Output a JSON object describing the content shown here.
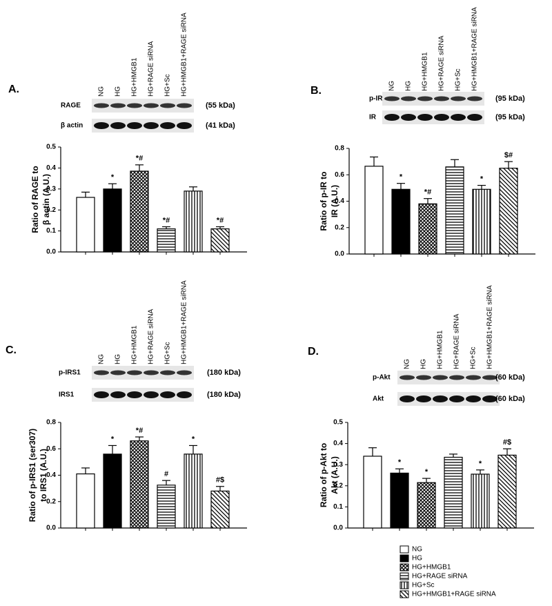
{
  "chart_data": [
    {
      "type": "bar",
      "panel": "A.",
      "categories": [
        "NG",
        "HG",
        "HG+HMGB1",
        "HG+RAGE siRNA",
        "HG+Sc",
        "HG+HMGB1+RAGE siRNA"
      ],
      "blots": [
        {
          "label": "RAGE",
          "size": "(55 kDa)"
        },
        {
          "label": "β actin",
          "size": "(41 kDa)"
        }
      ],
      "ylabel": [
        "Ratio of RAGE to",
        "β actin  (A.U.)"
      ],
      "values": [
        0.26,
        0.3,
        0.385,
        0.11,
        0.29,
        0.11
      ],
      "errors": [
        0.025,
        0.025,
        0.03,
        0.01,
        0.02,
        0.01
      ],
      "annotations": [
        null,
        "*",
        "*#",
        "*#",
        null,
        "*#"
      ],
      "patterns": [
        "open",
        "solid",
        "crosshatch",
        "horizontal",
        "vertical",
        "diagonal"
      ],
      "ylim": [
        0,
        0.5
      ],
      "yticks": [
        {
          "value": 0,
          "label": "0.0"
        },
        0.1,
        0.2,
        0.3,
        0.4,
        0.5
      ]
    },
    {
      "type": "bar",
      "panel": "B.",
      "categories": [
        "NG",
        "HG",
        "HG+HMGB1",
        "HG+RAGE siRNA",
        "HG+Sc",
        "HG+HMGB1+RAGE siRNA"
      ],
      "blots": [
        {
          "label": "p-IR",
          "size": "(95 kDa)"
        },
        {
          "label": "IR",
          "size": "(95 kDa)"
        }
      ],
      "ylabel": [
        "Ratio of p-IR to",
        "IR (A.U.)"
      ],
      "values": [
        0.665,
        0.49,
        0.38,
        0.66,
        0.49,
        0.65
      ],
      "errors": [
        0.07,
        0.045,
        0.04,
        0.055,
        0.03,
        0.05
      ],
      "annotations": [
        null,
        "*",
        "*#",
        null,
        "*",
        "$#"
      ],
      "patterns": [
        "open",
        "solid",
        "crosshatch",
        "horizontal",
        "vertical",
        "diagonal"
      ],
      "ylim": [
        0,
        0.8
      ],
      "yticks": [
        {
          "value": 0,
          "label": "0.0"
        },
        0.2,
        0.4,
        0.6,
        0.8
      ]
    },
    {
      "type": "bar",
      "panel": "C.",
      "categories": [
        "NG",
        "HG",
        "HG+HMGB1",
        "HG+RAGE siRNA",
        "HG+Sc",
        "HG+HMGB1+RAGE siRNA"
      ],
      "blots": [
        {
          "label": "p-IRS1",
          "size": "(180 kDa)"
        },
        {
          "label": "IRS1",
          "size": "(180 kDa)"
        }
      ],
      "ylabel": [
        "Ratio of p-IRS1 (ser307)",
        "to IRS1 (A.U.)"
      ],
      "values": [
        0.41,
        0.56,
        0.66,
        0.325,
        0.56,
        0.28
      ],
      "errors": [
        0.045,
        0.065,
        0.03,
        0.035,
        0.065,
        0.035
      ],
      "annotations": [
        null,
        "*",
        "*#",
        "#",
        "*",
        "#$"
      ],
      "patterns": [
        "open",
        "solid",
        "crosshatch",
        "horizontal",
        "vertical",
        "diagonal"
      ],
      "ylim": [
        0,
        0.8
      ],
      "yticks": [
        {
          "value": 0,
          "label": "0.0"
        },
        0.2,
        0.4,
        0.6,
        0.8
      ]
    },
    {
      "type": "bar",
      "panel": "D.",
      "categories": [
        "NG",
        "HG",
        "HG+HMGB1",
        "HG+RAGE siRNA",
        "HG+Sc",
        "HG+HMGB1+RAGE siRNA"
      ],
      "blots": [
        {
          "label": "p-Akt",
          "size": "(60 kDa)"
        },
        {
          "label": "Akt",
          "size": "(60 kDa)"
        }
      ],
      "ylabel": [
        "Ratio of p-Akt to",
        "Akt (A.U.)"
      ],
      "values": [
        0.34,
        0.26,
        0.215,
        0.335,
        0.255,
        0.345
      ],
      "errors": [
        0.04,
        0.02,
        0.02,
        0.015,
        0.02,
        0.03
      ],
      "annotations": [
        null,
        "*",
        "*",
        null,
        "*",
        "#$"
      ],
      "patterns": [
        "open",
        "solid",
        "crosshatch",
        "horizontal",
        "vertical",
        "diagonal"
      ],
      "ylim": [
        0,
        0.5
      ],
      "yticks": [
        {
          "value": 0,
          "label": "0.0"
        },
        0.1,
        0.2,
        0.3,
        0.4,
        0.5
      ]
    }
  ]
}
